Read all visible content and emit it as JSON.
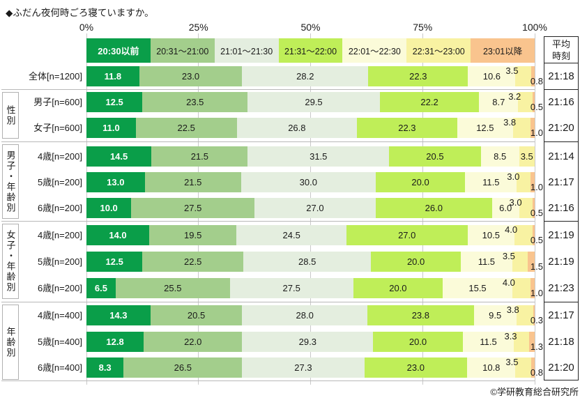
{
  "page": {
    "title": "◆ふだん夜何時ごろ寝ていますか。",
    "footer": "©学研教育総合研究所"
  },
  "avg_column": {
    "header_line1": "平均",
    "header_line2": "時刻"
  },
  "chart_data": {
    "type": "bar",
    "stacked": true,
    "orientation": "horizontal",
    "unit": "%",
    "title": "ふだん夜何時ごろ寝ていますか。",
    "xlim": [
      0,
      100
    ],
    "x_ticks": [
      "0%",
      "25%",
      "50%",
      "75%",
      "100%"
    ],
    "grid": true,
    "legend_position": "top",
    "legend": [
      {
        "label": "20:30以前",
        "color": "#0a9e49",
        "text_color": "#ffffff"
      },
      {
        "label": "20:31～21:00",
        "color": "#a3ce8c",
        "text_color": "#1a1a1a"
      },
      {
        "label": "21:01～21:30",
        "color": "#e4eedf",
        "text_color": "#1a1a1a"
      },
      {
        "label": "21:31～22:00",
        "color": "#bfee58",
        "text_color": "#1a1a1a"
      },
      {
        "label": "22:01～22:30",
        "color": "#fbfbd9",
        "text_color": "#1a1a1a"
      },
      {
        "label": "22:31～23:00",
        "color": "#f8f2a2",
        "text_color": "#1a1a1a"
      },
      {
        "label": "23:01以降",
        "color": "#f9c48e",
        "text_color": "#1a1a1a"
      }
    ],
    "groups": [
      {
        "label": "性別",
        "row_indexes": [
          1,
          2
        ]
      },
      {
        "label": "男子・年齢別",
        "row_indexes": [
          3,
          4,
          5
        ]
      },
      {
        "label": "女子・年齢別",
        "row_indexes": [
          6,
          7,
          8
        ]
      },
      {
        "label": "年齢別",
        "row_indexes": [
          9,
          10,
          11
        ]
      }
    ],
    "rows": [
      {
        "label": "全体[n=1200]",
        "values": [
          11.8,
          23.0,
          28.2,
          22.3,
          10.6,
          3.5,
          0.8
        ],
        "avg": "21:18"
      },
      {
        "label": "男子[n=600]",
        "values": [
          12.5,
          23.5,
          29.5,
          22.2,
          8.7,
          3.2,
          0.5
        ],
        "avg": "21:16"
      },
      {
        "label": "女子[n=600]",
        "values": [
          11.0,
          22.5,
          26.8,
          22.3,
          12.5,
          3.8,
          1.0
        ],
        "avg": "21:20"
      },
      {
        "label": "4歳[n=200]",
        "values": [
          14.5,
          21.5,
          31.5,
          20.5,
          8.5,
          3.5,
          0.0
        ],
        "avg": "21:14"
      },
      {
        "label": "5歳[n=200]",
        "values": [
          13.0,
          21.5,
          30.0,
          20.0,
          11.5,
          3.0,
          1.0
        ],
        "avg": "21:17"
      },
      {
        "label": "6歳[n=200]",
        "values": [
          10.0,
          27.5,
          27.0,
          26.0,
          6.0,
          3.0,
          0.5
        ],
        "avg": "21:16"
      },
      {
        "label": "4歳[n=200]",
        "values": [
          14.0,
          19.5,
          24.5,
          27.0,
          10.5,
          4.0,
          0.5
        ],
        "avg": "21:19"
      },
      {
        "label": "5歳[n=200]",
        "values": [
          12.5,
          22.5,
          28.5,
          20.0,
          11.5,
          3.5,
          1.5
        ],
        "avg": "21:19"
      },
      {
        "label": "6歳[n=200]",
        "values": [
          6.5,
          25.5,
          27.5,
          20.0,
          15.5,
          4.0,
          1.0
        ],
        "avg": "21:23"
      },
      {
        "label": "4歳[n=400]",
        "values": [
          14.3,
          20.5,
          28.0,
          23.8,
          9.5,
          3.8,
          0.3
        ],
        "avg": "21:17"
      },
      {
        "label": "5歳[n=400]",
        "values": [
          12.8,
          22.0,
          29.3,
          20.0,
          11.5,
          3.3,
          1.3
        ],
        "avg": "21:18"
      },
      {
        "label": "6歳[n=400]",
        "values": [
          8.3,
          26.5,
          27.3,
          23.0,
          10.8,
          3.5,
          0.8
        ],
        "avg": "21:20"
      }
    ]
  }
}
